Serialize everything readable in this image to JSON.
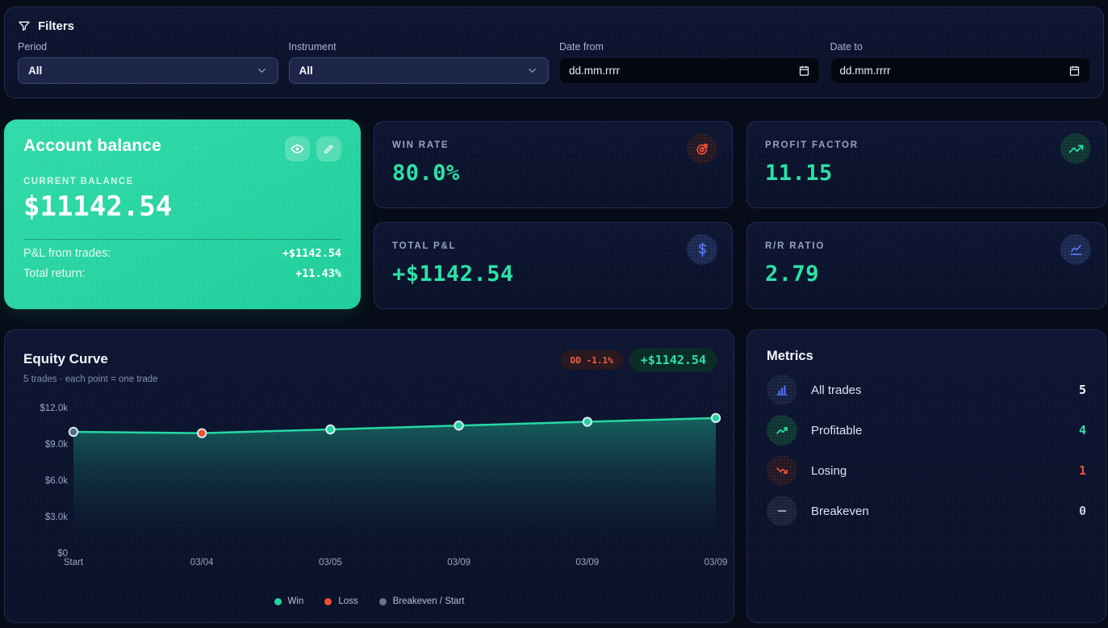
{
  "filters": {
    "title": "Filters",
    "fields": [
      {
        "label": "Period",
        "type": "select",
        "value": "All"
      },
      {
        "label": "Instrument",
        "type": "select",
        "value": "All"
      },
      {
        "label": "Date from",
        "type": "date",
        "placeholder": "dd.mm.rrrr"
      },
      {
        "label": "Date to",
        "type": "date",
        "placeholder": "dd.mm.rrrr"
      }
    ]
  },
  "account": {
    "title": "Account balance",
    "balance_label": "CURRENT BALANCE",
    "balance": "$11142.54",
    "pnl_label": "P&L from trades:",
    "pnl_value": "+$1142.54",
    "return_label": "Total return:",
    "return_value": "+11.43%",
    "icons": [
      "eye-icon",
      "pencil-icon"
    ],
    "accent_color": "#2bd9a5"
  },
  "stats": [
    {
      "label": "WIN RATE",
      "value": "80.0%",
      "icon": "target-icon",
      "value_color": "#2ae3a6"
    },
    {
      "label": "PROFIT FACTOR",
      "value": "11.15",
      "icon": "trend-up-icon",
      "value_color": "#2ae3a6"
    },
    {
      "label": "TOTAL P&L",
      "value": "+$1142.54",
      "icon": "dollar-icon",
      "value_color": "#2ae3a6"
    },
    {
      "label": "R/R RATIO",
      "value": "2.79",
      "icon": "line-chart-icon",
      "value_color": "#2ae3a6"
    }
  ],
  "equity": {
    "title": "Equity Curve",
    "subtitle": "5 trades · each point = one trade",
    "dd_badge": "DD -1.1%",
    "pnl_badge": "+$1142.54"
  },
  "chart_data": {
    "type": "area",
    "title": "Equity Curve",
    "x": [
      "Start",
      "03/04",
      "03/05",
      "03/09",
      "03/09",
      "03/09"
    ],
    "values": [
      10000,
      9890,
      10200,
      10520,
      10830,
      11142.54
    ],
    "point_types": [
      "start",
      "loss",
      "win",
      "win",
      "win",
      "win"
    ],
    "ylim": [
      0,
      12000
    ],
    "yticks": [
      {
        "label": "$12.0k",
        "value": 12000
      },
      {
        "label": "$9.0k",
        "value": 9000
      },
      {
        "label": "$6.0k",
        "value": 6000
      },
      {
        "label": "$3.0k",
        "value": 3000
      },
      {
        "label": "$0",
        "value": 0
      }
    ],
    "grid": false,
    "legend_position": "bottom",
    "legend": [
      {
        "label": "Win",
        "color": "#22d3a0"
      },
      {
        "label": "Loss",
        "color": "#f0512f"
      },
      {
        "label": "Breakeven / Start",
        "color": "#64748b"
      }
    ],
    "colors": {
      "line": "#25d8a2",
      "area_top": "rgba(34,211,160,0.40)",
      "area_bottom": "rgba(13,27,54,0.02)",
      "win": "#22d3a0",
      "loss": "#f0512f",
      "start": "#5b6b85",
      "axis_text": "#9aa7c4"
    }
  },
  "metrics": {
    "title": "Metrics",
    "rows": [
      {
        "label": "All trades",
        "value": "5",
        "icon": "bar-chart-icon",
        "value_color": "#f1f5fb"
      },
      {
        "label": "Profitable",
        "value": "4",
        "icon": "trend-up-icon",
        "value_color": "#2ae3a6"
      },
      {
        "label": "Losing",
        "value": "1",
        "icon": "trend-down-icon",
        "value_color": "#f0512f"
      },
      {
        "label": "Breakeven",
        "value": "0",
        "icon": "minus-icon",
        "value_color": "#c7cfdd"
      }
    ]
  }
}
